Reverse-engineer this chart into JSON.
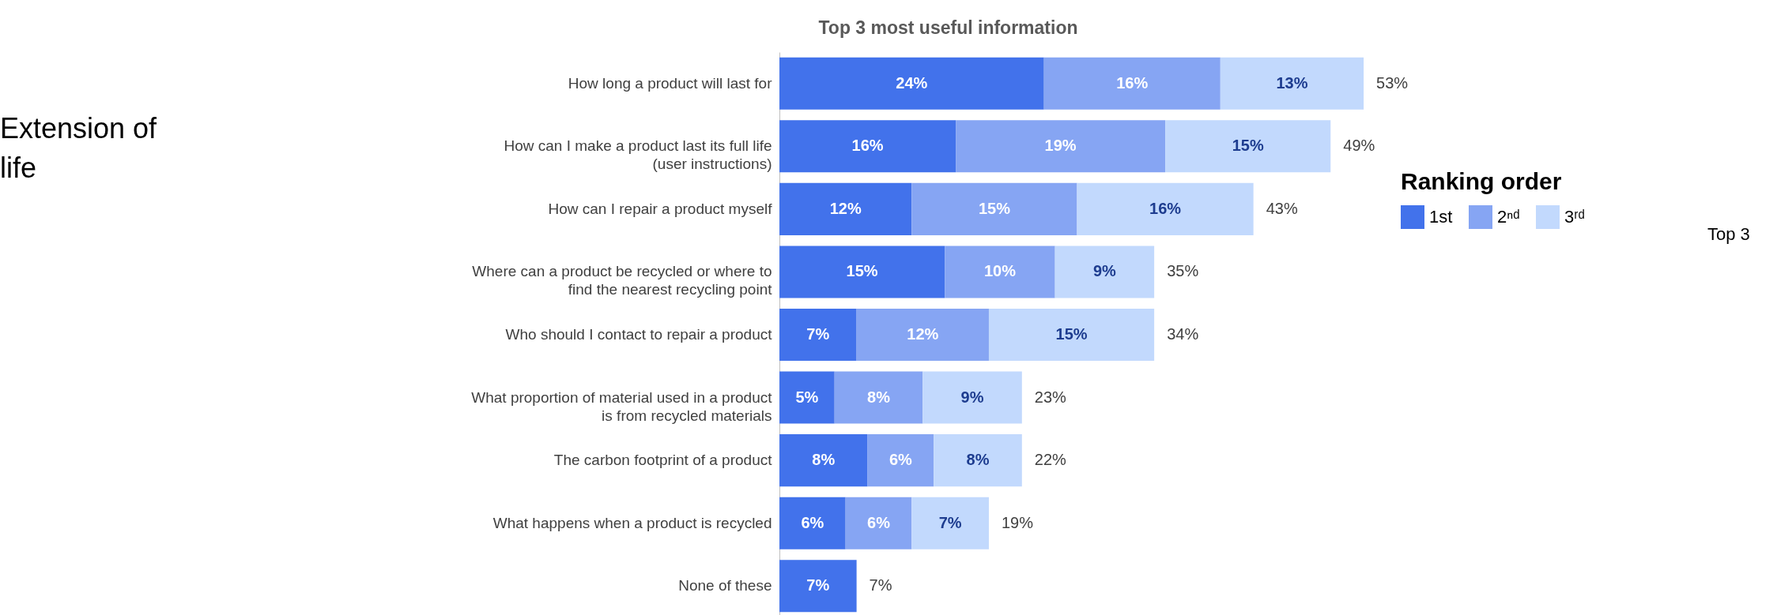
{
  "chart_data": {
    "type": "bar",
    "orientation": "horizontal",
    "stacked": true,
    "title": "Top 3 most useful information",
    "categories": [
      "How long a product will last for",
      "How can I make a product last its full life (user instructions)",
      "How can I repair a product myself",
      "Where can a product be recycled or where to find the nearest recycling point",
      "Who should I contact to repair a product",
      "What proportion of material used in a product is from recycled materials",
      "The carbon footprint of a product",
      "What happens when a product is recycled",
      "None of these"
    ],
    "series": [
      {
        "name": "1st",
        "color": "#4272eb",
        "values": [
          24,
          16,
          12,
          15,
          7,
          5,
          8,
          6,
          7
        ],
        "value_labels": [
          "24%",
          "16%",
          "12%",
          "15%",
          "7%",
          "5%",
          "8%",
          "6%",
          "7%"
        ]
      },
      {
        "name": "2ⁿᵈ",
        "color": "#86a5f3",
        "values": [
          16,
          19,
          15,
          10,
          12,
          8,
          6,
          6,
          null
        ],
        "value_labels": [
          "16%",
          "19%",
          "15%",
          "10%",
          "12%",
          "8%",
          "6%",
          "6%",
          null
        ]
      },
      {
        "name": "3ʳᵈ",
        "color": "#c2d9fd",
        "values": [
          13,
          15,
          16,
          9,
          15,
          9,
          8,
          7,
          null
        ],
        "value_labels": [
          "13%",
          "15%",
          "16%",
          "9%",
          "15%",
          "9%",
          "8%",
          "7%",
          null
        ]
      }
    ],
    "totals": [
      "53%",
      "49%",
      "43%",
      "35%",
      "34%",
      "23%",
      "22%",
      "19%",
      "7%"
    ],
    "legend_title": "Ranking order",
    "legend": "right",
    "annotations": [
      "Extension of life",
      "Top 3"
    ]
  }
}
